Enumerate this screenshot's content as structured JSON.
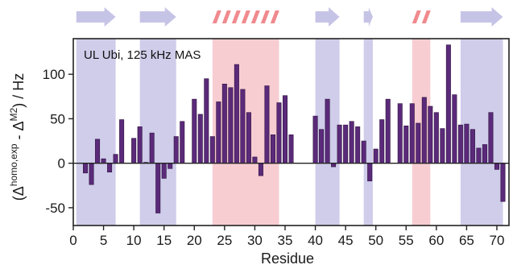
{
  "chart_data": {
    "type": "bar",
    "title": "",
    "annotation": "UL Ubi, 125 kHz MAS",
    "xlabel": "Residue",
    "ylabel": {
      "prefix": "(Δ",
      "sup1": "homo,exp",
      "mid": " - Δ",
      "sup2": "M2",
      "suffix": ") / Hz"
    },
    "xlim": [
      0,
      72
    ],
    "ylim": [
      -70,
      140
    ],
    "xticks": [
      0,
      5,
      10,
      15,
      20,
      25,
      30,
      35,
      40,
      45,
      50,
      55,
      60,
      65,
      70
    ],
    "yticks": [
      -50,
      0,
      50,
      100
    ],
    "grid": false,
    "colors": {
      "bar": "#5b2a7a",
      "bar_edge": "#2f123f",
      "strand": "#cfcdea",
      "helix": "#f7cdd2",
      "strand_arrow": "#c6c4e6",
      "helix_stripe": "#f08a8e",
      "axis": "#222222"
    },
    "secondary_structure": [
      {
        "type": "strand",
        "start": 0.5,
        "end": 7
      },
      {
        "type": "strand",
        "start": 11,
        "end": 17
      },
      {
        "type": "helix",
        "start": 23,
        "end": 34
      },
      {
        "type": "strand",
        "start": 40,
        "end": 44
      },
      {
        "type": "strand",
        "start": 48,
        "end": 49.5
      },
      {
        "type": "helix",
        "start": 56,
        "end": 59
      },
      {
        "type": "strand",
        "start": 64,
        "end": 71
      }
    ],
    "residues": [
      2,
      3,
      4,
      5,
      6,
      7,
      8,
      10,
      11,
      12,
      13,
      14,
      15,
      16,
      17,
      18,
      20,
      21,
      22,
      23,
      24,
      25,
      26,
      27,
      28,
      29,
      30,
      31,
      32,
      33,
      34,
      35,
      36,
      40,
      41,
      42,
      43,
      44,
      45,
      46,
      47,
      48,
      49,
      50,
      51,
      52,
      54,
      55,
      56,
      57,
      58,
      59,
      60,
      61,
      62,
      63,
      64,
      65,
      66,
      67,
      68,
      69,
      70,
      71
    ],
    "values": [
      -11,
      -24,
      27,
      5,
      -10,
      10,
      49,
      28,
      41,
      1,
      34,
      -56,
      -17,
      -6,
      30,
      47,
      72,
      55,
      95,
      30,
      69,
      89,
      85,
      111,
      83,
      57,
      7,
      -14,
      87,
      32,
      68,
      76,
      32,
      53,
      38,
      72,
      -4,
      43,
      43,
      47,
      41,
      25,
      -20,
      16,
      49,
      72,
      67,
      42,
      67,
      45,
      74,
      64,
      57,
      39,
      133,
      77,
      43,
      44,
      38,
      17,
      21,
      57,
      -7,
      -43
    ]
  }
}
